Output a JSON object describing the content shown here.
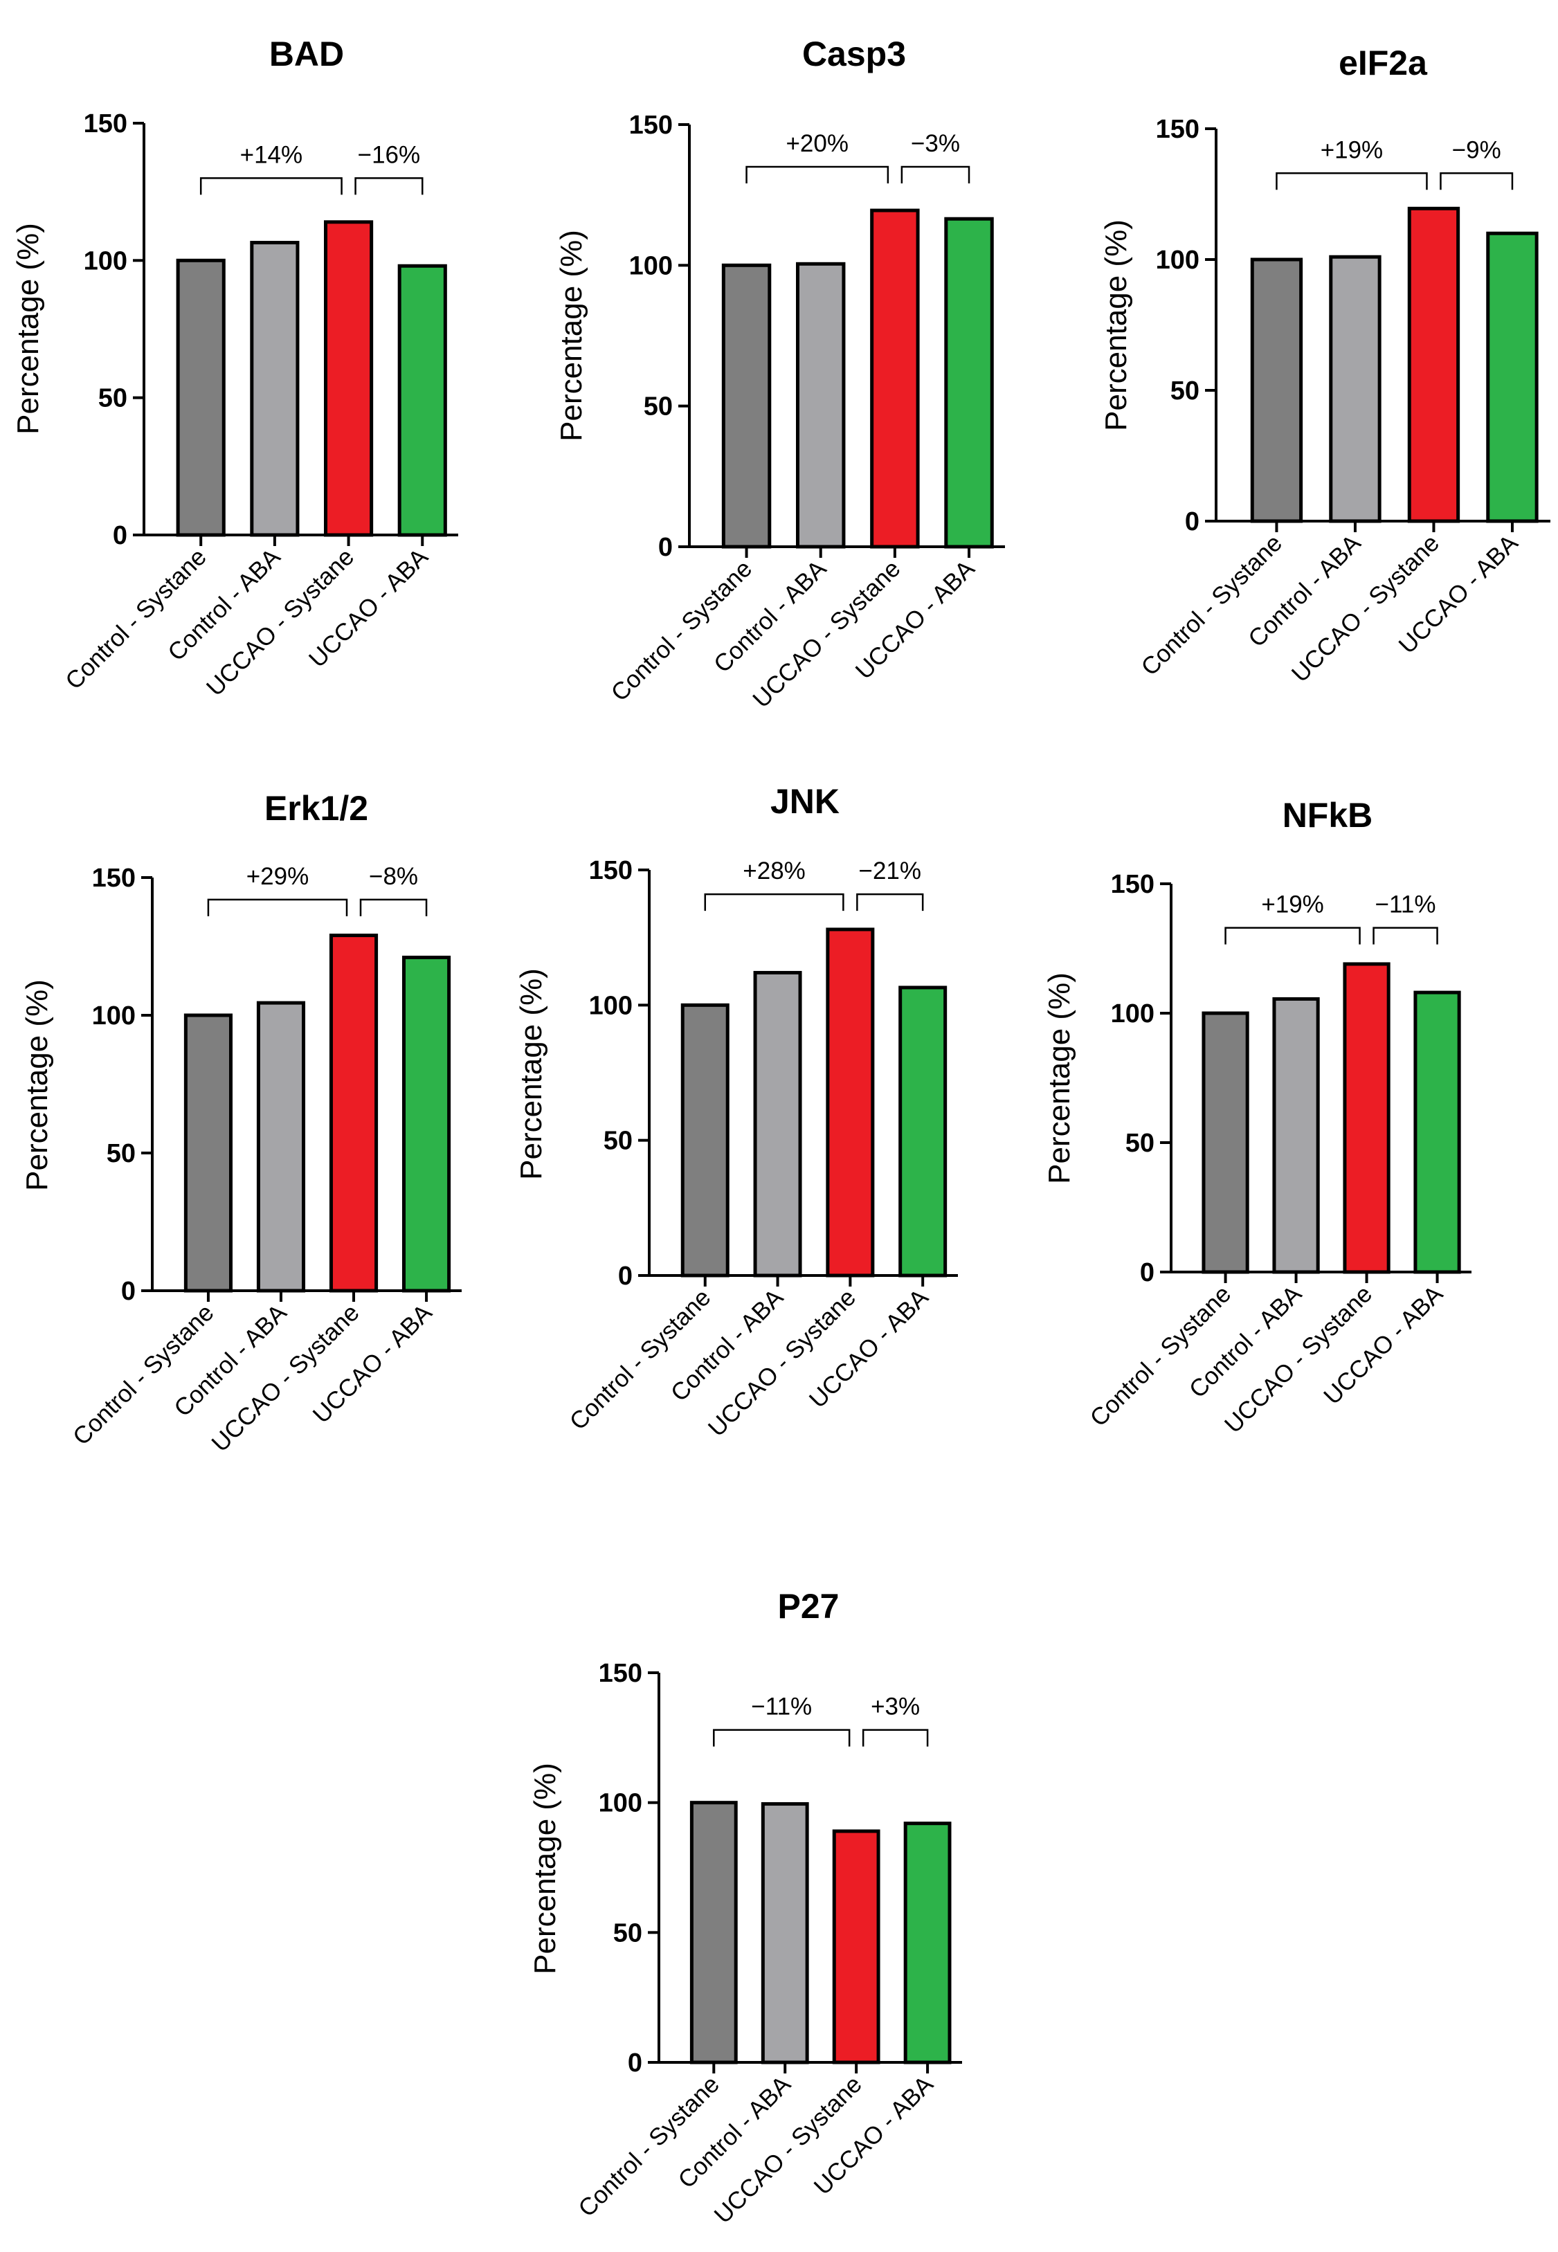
{
  "chart_data": [
    {
      "type": "bar",
      "title": "BAD",
      "xlabel": "",
      "ylabel": "Percentage (%)",
      "ylim": [
        0,
        150
      ],
      "yticks": [
        0,
        50,
        100,
        150
      ],
      "categories": [
        "Control - Systane",
        "Control - ABA",
        "UCCAO - Systane",
        "UCCAO - ABA"
      ],
      "values": [
        100,
        106.5,
        114,
        98
      ],
      "annotations": [
        {
          "text": "+14%",
          "from": "Control - Systane",
          "to": "UCCAO - Systane",
          "y": 130
        },
        {
          "text": "−16%",
          "from": "UCCAO - Systane",
          "to": "UCCAO - ABA",
          "y": 130
        }
      ]
    },
    {
      "type": "bar",
      "title": "Casp3",
      "xlabel": "",
      "ylabel": "Percentage (%)",
      "ylim": [
        0,
        150
      ],
      "yticks": [
        0,
        50,
        100,
        150
      ],
      "categories": [
        "Control - Systane",
        "Control - ABA",
        "UCCAO - Systane",
        "UCCAO - ABA"
      ],
      "values": [
        100,
        100.5,
        119.5,
        116.5
      ],
      "annotations": [
        {
          "text": "+20%",
          "from": "Control - Systane",
          "to": "UCCAO - Systane",
          "y": 135
        },
        {
          "text": "−3%",
          "from": "UCCAO - Systane",
          "to": "UCCAO - ABA",
          "y": 135
        }
      ]
    },
    {
      "type": "bar",
      "title": "eIF2a",
      "xlabel": "",
      "ylabel": "Percentage (%)",
      "ylim": [
        0,
        150
      ],
      "yticks": [
        0,
        50,
        100,
        150
      ],
      "categories": [
        "Control - Systane",
        "Control - ABA",
        "UCCAO - Systane",
        "UCCAO - ABA"
      ],
      "values": [
        100,
        101,
        119.5,
        110
      ],
      "annotations": [
        {
          "text": "+19%",
          "from": "Control - Systane",
          "to": "UCCAO - Systane",
          "y": 133
        },
        {
          "text": "−9%",
          "from": "UCCAO - Systane",
          "to": "UCCAO - ABA",
          "y": 133
        }
      ]
    },
    {
      "type": "bar",
      "title": "Erk1/2",
      "xlabel": "",
      "ylabel": "Percentage (%)",
      "ylim": [
        0,
        150
      ],
      "yticks": [
        0,
        50,
        100,
        150
      ],
      "categories": [
        "Control - Systane",
        "Control - ABA",
        "UCCAO - Systane",
        "UCCAO - ABA"
      ],
      "values": [
        100,
        104.5,
        129,
        121
      ],
      "annotations": [
        {
          "text": "+29%",
          "from": "Control - Systane",
          "to": "UCCAO - Systane",
          "y": 142
        },
        {
          "text": "−8%",
          "from": "UCCAO - Systane",
          "to": "UCCAO - ABA",
          "y": 142
        }
      ]
    },
    {
      "type": "bar",
      "title": "JNK",
      "xlabel": "",
      "ylabel": "Percentage (%)",
      "ylim": [
        0,
        150
      ],
      "yticks": [
        0,
        50,
        100,
        150
      ],
      "categories": [
        "Control - Systane",
        "Control - ABA",
        "UCCAO - Systane",
        "UCCAO - ABA"
      ],
      "values": [
        100,
        112,
        128,
        106.5
      ],
      "annotations": [
        {
          "text": "+28%",
          "from": "Control - Systane",
          "to": "UCCAO - Systane",
          "y": 141
        },
        {
          "text": "−21%",
          "from": "UCCAO - Systane",
          "to": "UCCAO - ABA",
          "y": 141
        }
      ]
    },
    {
      "type": "bar",
      "title": "NFkB",
      "xlabel": "",
      "ylabel": "Percentage (%)",
      "ylim": [
        0,
        150
      ],
      "yticks": [
        0,
        50,
        100,
        150
      ],
      "categories": [
        "Control - Systane",
        "Control - ABA",
        "UCCAO - Systane",
        "UCCAO - ABA"
      ],
      "values": [
        100,
        105.5,
        119,
        108
      ],
      "annotations": [
        {
          "text": "+19%",
          "from": "Control - Systane",
          "to": "UCCAO - Systane",
          "y": 133
        },
        {
          "text": "−11%",
          "from": "UCCAO - Systane",
          "to": "UCCAO - ABA",
          "y": 133
        }
      ]
    },
    {
      "type": "bar",
      "title": "P27",
      "xlabel": "",
      "ylabel": "Percentage (%)",
      "ylim": [
        0,
        150
      ],
      "yticks": [
        0,
        50,
        100,
        150
      ],
      "categories": [
        "Control - Systane",
        "Control - ABA",
        "UCCAO - Systane",
        "UCCAO - ABA"
      ],
      "values": [
        100,
        99.5,
        89,
        92
      ],
      "annotations": [
        {
          "text": "−11%",
          "from": "Control - Systane",
          "to": "UCCAO - Systane",
          "y": 128
        },
        {
          "text": "+3%",
          "from": "UCCAO - Systane",
          "to": "UCCAO - ABA",
          "y": 128
        }
      ]
    }
  ],
  "colors": {
    "bars": [
      "#7f7f7f",
      "#a5a5a8",
      "#ec1d25",
      "#2db34a"
    ],
    "outline": "#000000",
    "bracket": "#000000"
  }
}
